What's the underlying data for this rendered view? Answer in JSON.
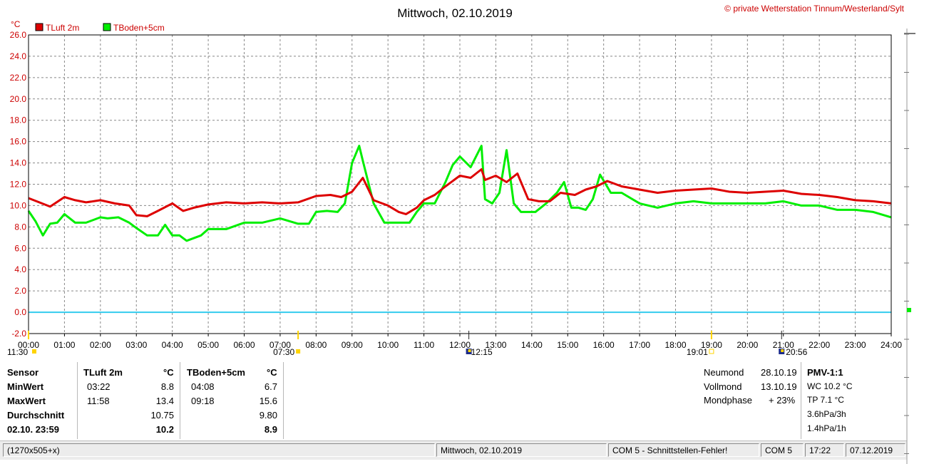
{
  "title": "Mittwoch, 02.10.2019",
  "copyright": "© private Wetterstation Tinnum/Westerland/Sylt",
  "y_unit": "°C",
  "legend": [
    {
      "label": "TLuft 2m",
      "color": "#dd0000"
    },
    {
      "label": "TBoden+5cm",
      "color": "#00ee00"
    }
  ],
  "chart_data": {
    "type": "line",
    "ylim": [
      -2,
      26
    ],
    "yticks": [
      "26.0",
      "24.0",
      "22.0",
      "20.0",
      "18.0",
      "16.0",
      "14.0",
      "12.0",
      "10.0",
      "8.0",
      "6.0",
      "4.0",
      "2.0",
      "0.0",
      "-2.0"
    ],
    "xlim": [
      0,
      24
    ],
    "xticks": [
      "00:00",
      "01:00",
      "02:00",
      "03:00",
      "04:00",
      "05:00",
      "06:00",
      "07:00",
      "08:00",
      "09:00",
      "10:00",
      "11:00",
      "12:00",
      "13:00",
      "14:00",
      "15:00",
      "16:00",
      "17:00",
      "18:00",
      "19:00",
      "20:00",
      "21:00",
      "22:00",
      "23:00",
      "24:00"
    ],
    "grid": true,
    "zero_line_color": "#33ccee",
    "series": [
      {
        "name": "TLuft 2m",
        "color": "#dd0000",
        "x": [
          0,
          0.3,
          0.6,
          1.0,
          1.3,
          1.6,
          2.0,
          2.4,
          2.8,
          3.0,
          3.3,
          3.6,
          4.0,
          4.3,
          4.6,
          5.0,
          5.5,
          6.0,
          6.5,
          7.0,
          7.5,
          8.0,
          8.4,
          8.7,
          9.0,
          9.3,
          9.6,
          10.0,
          10.3,
          10.5,
          10.8,
          11.0,
          11.3,
          11.6,
          12.0,
          12.3,
          12.6,
          12.7,
          13.0,
          13.3,
          13.6,
          13.9,
          14.2,
          14.5,
          14.8,
          15.2,
          15.5,
          15.8,
          16.1,
          16.5,
          17.0,
          17.5,
          18.0,
          18.5,
          19.0,
          19.5,
          20.0,
          20.5,
          21.0,
          21.5,
          22.0,
          22.5,
          23.0,
          23.5,
          24.0
        ],
        "y": [
          10.7,
          10.3,
          9.9,
          10.8,
          10.5,
          10.3,
          10.5,
          10.2,
          10.0,
          9.1,
          9.0,
          9.5,
          10.2,
          9.5,
          9.8,
          10.1,
          10.3,
          10.2,
          10.3,
          10.2,
          10.3,
          10.9,
          11.0,
          10.8,
          11.3,
          12.6,
          10.5,
          10.0,
          9.4,
          9.2,
          9.8,
          10.5,
          11.0,
          11.8,
          12.8,
          12.6,
          13.4,
          12.4,
          12.8,
          12.2,
          13.0,
          10.6,
          10.4,
          10.4,
          11.2,
          11.0,
          11.5,
          11.8,
          12.3,
          11.8,
          11.5,
          11.2,
          11.4,
          11.5,
          11.6,
          11.3,
          11.2,
          11.3,
          11.4,
          11.1,
          11.0,
          10.8,
          10.5,
          10.4,
          10.2
        ]
      },
      {
        "name": "TBoden+5cm",
        "color": "#00ee00",
        "x": [
          0,
          0.2,
          0.4,
          0.6,
          0.8,
          1.0,
          1.3,
          1.6,
          2.0,
          2.2,
          2.5,
          2.8,
          3.0,
          3.3,
          3.6,
          3.8,
          4.0,
          4.2,
          4.4,
          4.8,
          5.0,
          5.5,
          6.0,
          6.5,
          7.0,
          7.5,
          7.8,
          8.0,
          8.3,
          8.6,
          8.8,
          9.0,
          9.2,
          9.3,
          9.6,
          9.9,
          10.1,
          10.3,
          10.6,
          10.8,
          11.0,
          11.3,
          11.6,
          11.8,
          12.0,
          12.3,
          12.6,
          12.7,
          12.9,
          13.1,
          13.3,
          13.5,
          13.7,
          13.9,
          14.1,
          14.4,
          14.7,
          14.9,
          15.1,
          15.3,
          15.5,
          15.7,
          15.9,
          16.2,
          16.5,
          17.0,
          17.5,
          18.0,
          18.5,
          19.0,
          19.5,
          20.0,
          20.5,
          21.0,
          21.5,
          22.0,
          22.5,
          23.0,
          23.5,
          24.0
        ],
        "y": [
          9.5,
          8.5,
          7.2,
          8.3,
          8.4,
          9.2,
          8.4,
          8.4,
          8.9,
          8.8,
          8.9,
          8.4,
          7.9,
          7.2,
          7.2,
          8.2,
          7.2,
          7.2,
          6.7,
          7.2,
          7.8,
          7.8,
          8.4,
          8.4,
          8.8,
          8.3,
          8.3,
          9.4,
          9.5,
          9.4,
          10.2,
          14.0,
          15.6,
          14.2,
          10.2,
          8.4,
          8.4,
          8.4,
          8.4,
          9.4,
          10.2,
          10.2,
          12.2,
          13.8,
          14.6,
          13.6,
          15.6,
          10.6,
          10.2,
          11.2,
          15.2,
          10.2,
          9.4,
          9.4,
          9.4,
          10.2,
          11.2,
          12.2,
          9.8,
          9.8,
          9.6,
          10.6,
          12.9,
          11.2,
          11.2,
          10.2,
          9.8,
          10.2,
          10.4,
          10.2,
          10.2,
          10.2,
          10.2,
          10.4,
          10.0,
          10.0,
          9.6,
          9.6,
          9.4,
          8.9
        ]
      },
      {
        "name": "",
        "color": "#33ccee",
        "x": [
          0,
          24
        ],
        "y": [
          0,
          0
        ]
      }
    ],
    "events": [
      {
        "label": "11:30",
        "x_hour": 0.0
      },
      {
        "label": "07:30",
        "x_hour": 7.5
      },
      {
        "label": "12:15",
        "x_hour": 12.25
      },
      {
        "label": "19:01",
        "x_hour": 19.0
      },
      {
        "label": "20:56",
        "x_hour": 20.95
      }
    ]
  },
  "stats": {
    "header": {
      "sensor": "Sensor",
      "s1": "TLuft 2m",
      "s1_unit": "°C",
      "s2": "TBoden+5cm",
      "s2_unit": "°C"
    },
    "rows": [
      {
        "label": "MinWert",
        "t1": "03:22",
        "v1": "8.8",
        "t2": "04:08",
        "v2": "6.7"
      },
      {
        "label": "MaxWert",
        "t1": "11:58",
        "v1": "13.4",
        "t2": "09:18",
        "v2": "15.6"
      },
      {
        "label": "Durchschnitt",
        "t1": "",
        "v1": "10.75",
        "t2": "",
        "v2": "9.80"
      },
      {
        "label": "02.10. 23:59",
        "t1": "",
        "v1": "10.2",
        "t2": "",
        "v2": "8.9"
      }
    ],
    "moon": [
      {
        "label": "Neumond",
        "value": "28.10.19"
      },
      {
        "label": "Vollmond",
        "value": "13.10.19"
      },
      {
        "label": "Mondphase",
        "value": "+ 23%"
      }
    ],
    "pmv": [
      "PMV-1:1",
      "WC 10.2 °C",
      "TP 7.1 °C",
      "3.6hPa/3h",
      "1.4hPa/1h"
    ]
  },
  "status": {
    "size": "(1270x505+x)",
    "date": "Mittwoch, 02.10.2019",
    "error": "COM 5 - Schnittstellen-Fehler!",
    "port": "COM 5",
    "time": "17:22",
    "today": "07.12.2019"
  }
}
